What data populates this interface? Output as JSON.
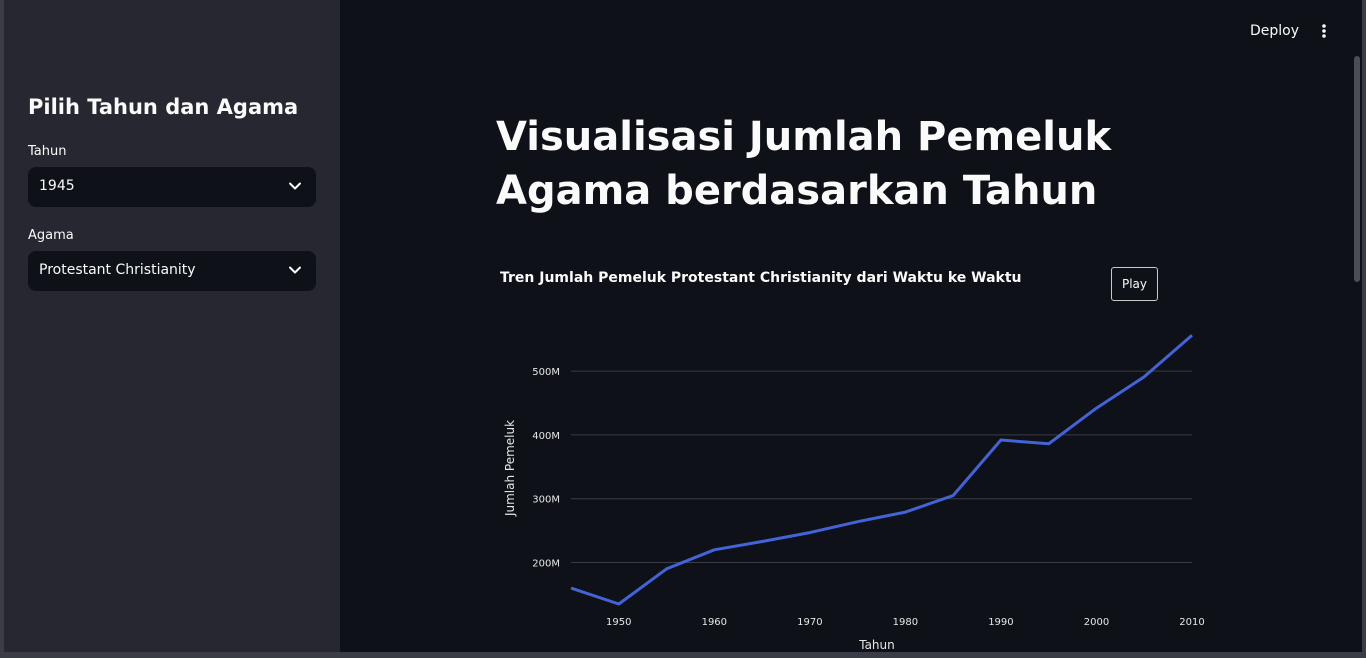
{
  "sidebar": {
    "title": "Pilih Tahun dan Agama",
    "year_label": "Tahun",
    "year_value": "1945",
    "religion_label": "Agama",
    "religion_value": "Protestant Christianity"
  },
  "topbar": {
    "deploy_label": "Deploy",
    "menu_icon": "vertical-ellipsis-icon"
  },
  "main": {
    "title": "Visualisasi Jumlah Pemeluk Agama berdasarkan Tahun"
  },
  "chart": {
    "play_label": "Play"
  },
  "colors": {
    "line": "#4363d8",
    "background": "#0e1117",
    "sidebar": "#262730",
    "grid": "#3a3d45"
  },
  "chart_data": {
    "type": "line",
    "title": "Tren Jumlah Pemeluk Protestant Christianity dari Waktu ke Waktu",
    "xlabel": "Tahun",
    "ylabel": "Jumlah Pemeluk",
    "x": [
      1945,
      1950,
      1955,
      1960,
      1965,
      1970,
      1975,
      1980,
      1985,
      1990,
      1995,
      2000,
      2005,
      2010
    ],
    "series": [
      {
        "values": [
          160000000,
          135000000,
          190000000,
          220000000,
          233000000,
          247000000,
          264000000,
          279000000,
          305000000,
          392000000,
          386000000,
          442000000,
          491000000,
          556000000
        ]
      }
    ],
    "xlim": [
      1945,
      2010
    ],
    "ylim": [
      110000000,
      580000000
    ],
    "x_ticks": [
      1950,
      1960,
      1970,
      1980,
      1990,
      2000,
      2010
    ],
    "x_tick_labels": [
      "1950",
      "1960",
      "1970",
      "1980",
      "1990",
      "2000",
      "2010"
    ],
    "y_ticks": [
      200000000,
      300000000,
      400000000,
      500000000
    ],
    "y_tick_labels": [
      "200M",
      "300M",
      "400M",
      "500M"
    ],
    "grid": true
  }
}
